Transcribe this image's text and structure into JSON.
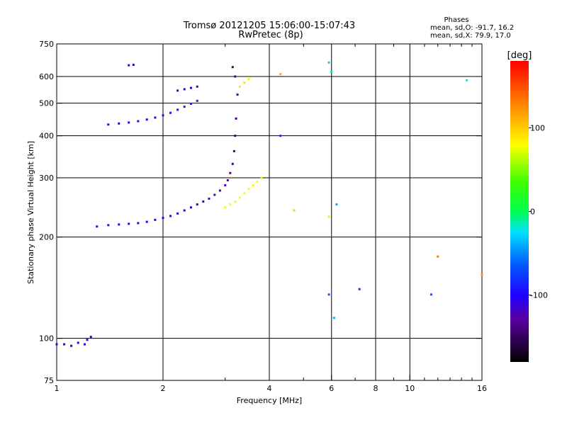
{
  "chart_data": {
    "type": "scatter",
    "title": "Tromsø 20121205 15:06:00-15:07:43",
    "subtitle": "RwPretec (8p)",
    "stats": {
      "heading": "Phases",
      "line_o": "mean, sd,O: -91.7, 16.2",
      "line_x": "mean, sd,X:  79.9, 17.0"
    },
    "xlabel": "Frequency [MHz]",
    "ylabel": "Stationary phase Virtual Height [km]",
    "x_scale": "log",
    "y_scale": "log",
    "xlim": [
      1,
      16
    ],
    "ylim": [
      75,
      750
    ],
    "x_ticks": [
      {
        "value": 1,
        "label": "1"
      },
      {
        "value": 2,
        "label": "2"
      },
      {
        "value": 4,
        "label": "4"
      },
      {
        "value": 6,
        "label": "6"
      },
      {
        "value": 8,
        "label": "8"
      },
      {
        "value": 10,
        "label": "10"
      },
      {
        "value": 16,
        "label": "16"
      }
    ],
    "x_major_grid": [
      2,
      4,
      6,
      8,
      10
    ],
    "x_minor_ticks": [
      3,
      5,
      7,
      9,
      11,
      12,
      13,
      14,
      15
    ],
    "y_ticks": [
      {
        "value": 75,
        "label": "75"
      },
      {
        "value": 100,
        "label": "100"
      },
      {
        "value": 200,
        "label": "200"
      },
      {
        "value": 300,
        "label": "300"
      },
      {
        "value": 400,
        "label": "400"
      },
      {
        "value": 500,
        "label": "500"
      },
      {
        "value": 600,
        "label": "600"
      },
      {
        "value": 750,
        "label": "750"
      }
    ],
    "y_grid": [
      100,
      200,
      300,
      400,
      500,
      600
    ],
    "colorbar": {
      "label": "[deg]",
      "range": [
        -180,
        180
      ],
      "ticks": [
        {
          "value": 100,
          "label": "100"
        },
        {
          "value": 0,
          "label": "0"
        },
        {
          "value": -100,
          "label": "-100"
        }
      ]
    },
    "series": [
      {
        "points": [
          [
            1.0,
            96,
            -100
          ],
          [
            1.05,
            96,
            -105
          ],
          [
            1.1,
            95,
            -100
          ],
          [
            1.15,
            97,
            -98
          ],
          [
            1.2,
            96,
            -100
          ],
          [
            1.22,
            99,
            -95
          ],
          [
            1.25,
            101,
            -110
          ]
        ]
      },
      {
        "points": [
          [
            1.3,
            215,
            -110
          ],
          [
            1.4,
            217,
            -110
          ],
          [
            1.5,
            218,
            -108
          ],
          [
            1.6,
            219,
            -106
          ],
          [
            1.7,
            220,
            -105
          ],
          [
            1.8,
            222,
            -103
          ],
          [
            1.9,
            225,
            -100
          ],
          [
            2.0,
            228,
            -98
          ],
          [
            2.1,
            231,
            -100
          ],
          [
            2.2,
            235,
            -98
          ],
          [
            2.3,
            240,
            -100
          ],
          [
            2.4,
            245,
            -100
          ],
          [
            2.5,
            250,
            -102
          ],
          [
            2.6,
            255,
            -105
          ],
          [
            2.7,
            260,
            -110
          ],
          [
            2.8,
            267,
            -115
          ],
          [
            2.9,
            275,
            -120
          ],
          [
            3.0,
            285,
            -125
          ],
          [
            3.05,
            295,
            -130
          ],
          [
            3.1,
            310,
            -135
          ],
          [
            3.15,
            330,
            -140
          ],
          [
            3.18,
            360,
            -140
          ],
          [
            3.2,
            400,
            -145
          ],
          [
            3.22,
            450,
            -140
          ],
          [
            3.25,
            530,
            -135
          ],
          [
            3.2,
            600,
            -140
          ],
          [
            3.15,
            640,
            -145
          ]
        ]
      },
      {
        "points": [
          [
            1.4,
            432,
            -110
          ],
          [
            1.5,
            435,
            -108
          ],
          [
            1.6,
            438,
            -106
          ],
          [
            1.7,
            442,
            -104
          ],
          [
            1.8,
            447,
            -100
          ],
          [
            1.9,
            453,
            -98
          ],
          [
            2.0,
            460,
            -96
          ],
          [
            2.1,
            468,
            -94
          ],
          [
            2.2,
            478,
            -92
          ],
          [
            2.3,
            488,
            -90
          ],
          [
            2.4,
            498,
            -88
          ],
          [
            2.5,
            508,
            -86
          ]
        ]
      },
      {
        "points": [
          [
            2.2,
            545,
            -110
          ],
          [
            2.3,
            550,
            -108
          ],
          [
            2.4,
            555,
            -106
          ],
          [
            2.5,
            560,
            -104
          ]
        ]
      },
      {
        "points": [
          [
            1.6,
            648,
            -110
          ],
          [
            1.65,
            650,
            -108
          ]
        ]
      },
      {
        "points": [
          [
            3.0,
            245,
            85
          ],
          [
            3.1,
            250,
            82
          ],
          [
            3.2,
            255,
            80
          ],
          [
            3.3,
            262,
            78
          ],
          [
            3.4,
            270,
            80
          ],
          [
            3.5,
            278,
            78
          ],
          [
            3.6,
            285,
            82
          ],
          [
            3.7,
            292,
            80
          ],
          [
            3.8,
            300,
            85
          ],
          [
            3.3,
            560,
            88
          ],
          [
            3.4,
            575,
            90
          ],
          [
            3.5,
            590,
            86
          ]
        ]
      },
      {
        "points": [
          [
            4.3,
            610,
            110
          ],
          [
            4.3,
            400,
            -80
          ],
          [
            5.9,
            660,
            -30
          ],
          [
            6.0,
            620,
            -10
          ],
          [
            6.2,
            250,
            -40
          ],
          [
            7.2,
            140,
            -80
          ],
          [
            11.5,
            135,
            -60
          ],
          [
            14.5,
            585,
            -20
          ],
          [
            5.9,
            135,
            -60
          ],
          [
            6.1,
            115,
            -40
          ],
          [
            12.0,
            175,
            130
          ],
          [
            16.0,
            155,
            120
          ],
          [
            4.7,
            240,
            60
          ],
          [
            5.9,
            230,
            90
          ]
        ]
      }
    ]
  }
}
